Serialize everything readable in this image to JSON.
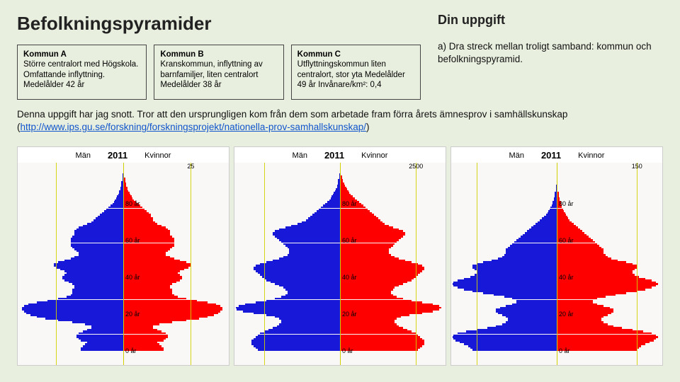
{
  "page_title": "Befolkningspyramider",
  "task_title": "Din uppgift",
  "task_text": "a) Dra streck mellan troligt samband: kommun och befolkningspyramid.",
  "source_para_prefix": "Denna uppgift har jag snott. Tror att den ursprungligen kom från dem som arbetade fram förra årets ämnesprov i samhällskunskap (",
  "source_link_text": "http://www.ips.gu.se/forskning/forskningsprojekt/nationella-prov-samhallskunskap/",
  "source_para_suffix": ")",
  "kommun_boxes": [
    {
      "name": "Kommun A",
      "desc": "Större centralort med Högskola. Omfattande inflyttning. Medelålder 42 år"
    },
    {
      "name": "Kommun B",
      "desc": "Kranskommun, inflyttning av barnfamiljer, liten centralort Medelålder 38 år"
    },
    {
      "name": "Kommun C",
      "desc": "Utflyttningskommun liten centralort, stor yta Medelålder 49 år Invånare/km²: 0,4"
    }
  ],
  "charts": [
    {
      "id": "chart-1",
      "men_label": "Män",
      "women_label": "Kvinnor",
      "year": "2011",
      "x_max_label": "25",
      "colors": {
        "male": "#1818d8",
        "female": "#ff0000",
        "tick": "#d0d000",
        "bg": "#faf8f6"
      },
      "age_labels": [
        {
          "age": 0
        },
        {
          "age": 20
        },
        {
          "age": 40
        },
        {
          "age": 60
        },
        {
          "age": 80
        }
      ],
      "age_bins": 101,
      "tick_positions_pct": [
        18,
        82
      ],
      "male": [
        40,
        40,
        38,
        36,
        34,
        40,
        42,
        44,
        44,
        42,
        38,
        34,
        30,
        30,
        36,
        48,
        62,
        74,
        82,
        88,
        92,
        94,
        96,
        96,
        94,
        90,
        82,
        72,
        62,
        54,
        50,
        48,
        48,
        48,
        46,
        46,
        48,
        52,
        56,
        58,
        58,
        56,
        54,
        56,
        60,
        64,
        66,
        66,
        62,
        56,
        50,
        46,
        42,
        42,
        44,
        46,
        48,
        50,
        50,
        50,
        50,
        50,
        48,
        46,
        46,
        46,
        44,
        42,
        38,
        34,
        30,
        28,
        26,
        24,
        22,
        20,
        18,
        16,
        14,
        12,
        10,
        9,
        8,
        7,
        6,
        5,
        4,
        4,
        3,
        3,
        2,
        2,
        2,
        1,
        1,
        1,
        1,
        0,
        0,
        0,
        0
      ],
      "female": [
        38,
        38,
        36,
        34,
        32,
        38,
        40,
        42,
        42,
        40,
        36,
        32,
        28,
        28,
        34,
        46,
        60,
        72,
        80,
        86,
        90,
        92,
        94,
        94,
        92,
        88,
        80,
        70,
        60,
        52,
        48,
        46,
        46,
        46,
        44,
        44,
        46,
        50,
        54,
        56,
        56,
        54,
        52,
        54,
        58,
        62,
        64,
        64,
        60,
        54,
        48,
        44,
        40,
        40,
        42,
        44,
        46,
        48,
        48,
        48,
        48,
        48,
        46,
        44,
        44,
        44,
        42,
        40,
        36,
        32,
        30,
        28,
        28,
        26,
        26,
        24,
        22,
        20,
        18,
        16,
        14,
        12,
        10,
        9,
        8,
        7,
        6,
        5,
        4,
        4,
        3,
        3,
        2,
        2,
        2,
        1,
        1,
        1,
        0,
        0,
        0
      ]
    },
    {
      "id": "chart-2",
      "men_label": "Män",
      "women_label": "Kvinnor",
      "year": "2011",
      "x_max_label": "2500",
      "colors": {
        "male": "#1818d8",
        "female": "#ff0000",
        "tick": "#d0d000",
        "bg": "#faf8f6"
      },
      "age_labels": [
        {
          "age": 0
        },
        {
          "age": 20
        },
        {
          "age": 40
        },
        {
          "age": 60
        },
        {
          "age": 80
        }
      ],
      "age_bins": 101,
      "tick_positions_pct": [
        14,
        86
      ],
      "male": [
        78,
        80,
        82,
        84,
        84,
        84,
        82,
        80,
        78,
        76,
        72,
        68,
        64,
        60,
        58,
        56,
        56,
        58,
        62,
        70,
        82,
        92,
        98,
        99,
        96,
        90,
        80,
        70,
        62,
        56,
        52,
        50,
        50,
        52,
        54,
        58,
        62,
        66,
        70,
        72,
        74,
        76,
        78,
        80,
        82,
        82,
        80,
        76,
        70,
        64,
        58,
        54,
        50,
        48,
        48,
        48,
        50,
        52,
        54,
        56,
        58,
        60,
        62,
        64,
        64,
        62,
        58,
        52,
        46,
        40,
        36,
        32,
        30,
        28,
        26,
        24,
        22,
        20,
        18,
        16,
        14,
        12,
        10,
        9,
        8,
        7,
        6,
        5,
        4,
        3,
        3,
        2,
        2,
        2,
        1,
        1,
        1,
        0,
        0,
        0,
        0
      ],
      "female": [
        74,
        76,
        78,
        80,
        80,
        80,
        78,
        76,
        74,
        72,
        68,
        64,
        60,
        56,
        54,
        52,
        52,
        54,
        58,
        66,
        78,
        88,
        94,
        96,
        94,
        88,
        78,
        68,
        60,
        54,
        50,
        48,
        48,
        50,
        52,
        56,
        60,
        64,
        68,
        70,
        72,
        74,
        76,
        78,
        80,
        80,
        78,
        74,
        68,
        62,
        56,
        52,
        48,
        46,
        46,
        46,
        48,
        50,
        52,
        54,
        56,
        58,
        60,
        62,
        62,
        60,
        56,
        50,
        46,
        42,
        40,
        38,
        36,
        34,
        32,
        30,
        28,
        26,
        24,
        22,
        20,
        18,
        16,
        14,
        12,
        10,
        9,
        8,
        7,
        6,
        5,
        4,
        3,
        3,
        2,
        2,
        1,
        1,
        1,
        0,
        0
      ]
    },
    {
      "id": "chart-3",
      "men_label": "Män",
      "women_label": "Kvinnor",
      "year": "2011",
      "x_max_label": "150",
      "colors": {
        "male": "#1818d8",
        "female": "#ff0000",
        "tick": "#d0d000",
        "bg": "#faf8f6"
      },
      "age_labels": [
        {
          "age": 0
        },
        {
          "age": 20
        },
        {
          "age": 40
        },
        {
          "age": 60
        },
        {
          "age": 80
        }
      ],
      "age_bins": 101,
      "tick_positions_pct": [
        12,
        88
      ],
      "male": [
        80,
        82,
        84,
        88,
        92,
        96,
        98,
        99,
        98,
        94,
        86,
        76,
        66,
        58,
        52,
        48,
        46,
        46,
        48,
        52,
        56,
        58,
        58,
        54,
        48,
        42,
        38,
        38,
        42,
        50,
        60,
        70,
        80,
        88,
        94,
        98,
        99,
        98,
        94,
        88,
        82,
        78,
        76,
        76,
        78,
        80,
        80,
        76,
        70,
        62,
        56,
        52,
        50,
        48,
        48,
        48,
        46,
        44,
        42,
        40,
        38,
        36,
        34,
        32,
        30,
        28,
        26,
        24,
        22,
        20,
        18,
        16,
        14,
        12,
        10,
        9,
        8,
        7,
        6,
        5,
        4,
        4,
        3,
        3,
        2,
        2,
        2,
        1,
        1,
        1,
        1,
        0,
        0,
        0,
        0,
        0,
        0,
        0,
        0,
        0,
        0
      ],
      "female": [
        76,
        78,
        80,
        84,
        88,
        92,
        94,
        96,
        94,
        90,
        82,
        72,
        62,
        54,
        48,
        44,
        42,
        42,
        44,
        48,
        52,
        54,
        54,
        50,
        44,
        38,
        34,
        34,
        38,
        46,
        56,
        66,
        76,
        84,
        90,
        94,
        96,
        94,
        90,
        84,
        78,
        74,
        72,
        72,
        74,
        76,
        76,
        72,
        66,
        58,
        52,
        48,
        46,
        44,
        44,
        44,
        42,
        40,
        38,
        36,
        34,
        32,
        30,
        28,
        26,
        24,
        22,
        20,
        18,
        16,
        14,
        12,
        11,
        10,
        9,
        8,
        7,
        6,
        5,
        5,
        4,
        4,
        3,
        3,
        2,
        2,
        2,
        1,
        1,
        1,
        1,
        0,
        0,
        0,
        0,
        0,
        0,
        0,
        0,
        0,
        0
      ]
    }
  ]
}
